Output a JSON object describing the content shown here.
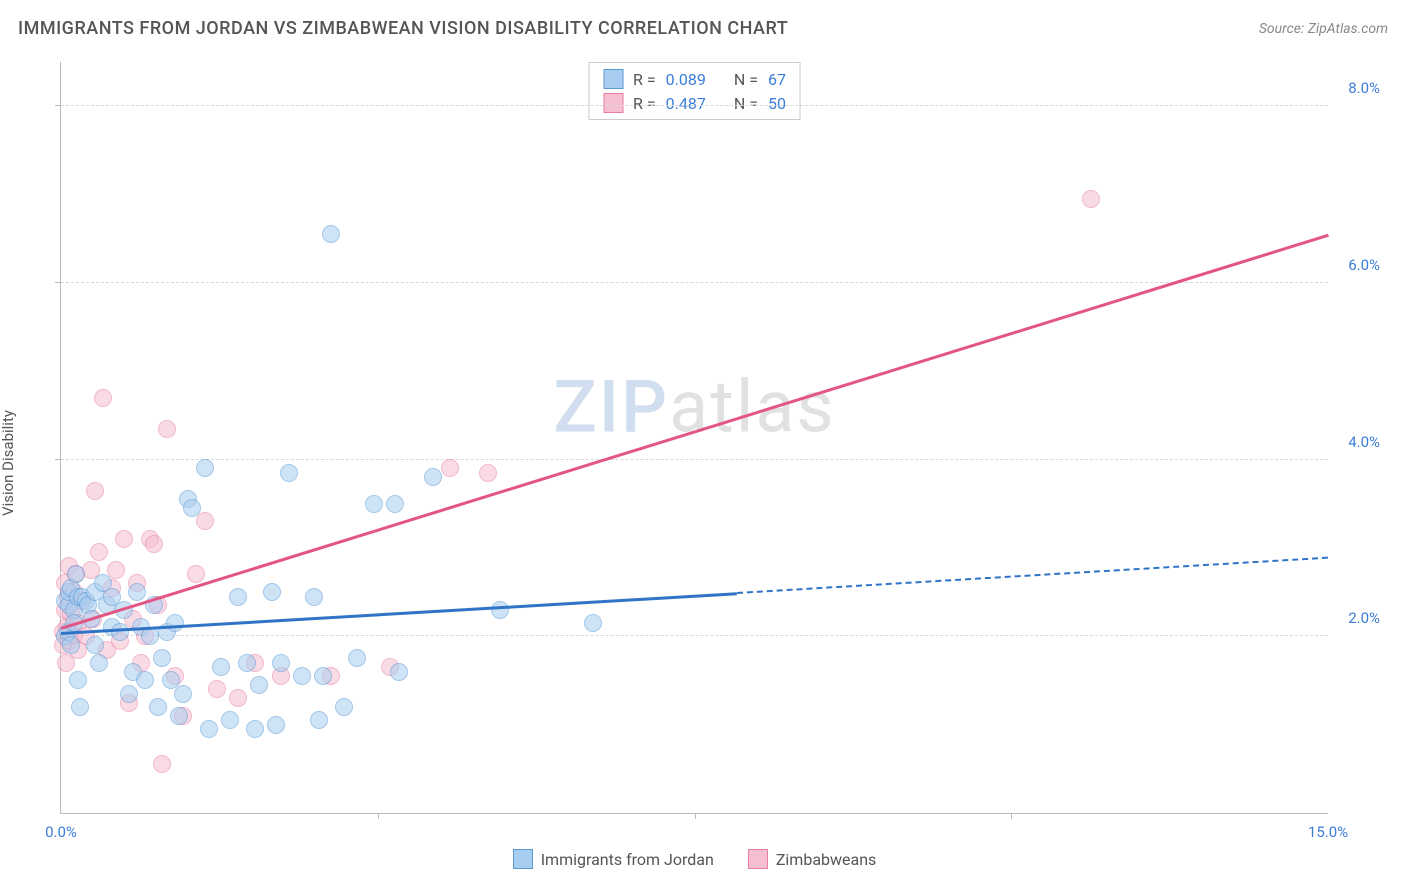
{
  "title": "IMMIGRANTS FROM JORDAN VS ZIMBABWEAN VISION DISABILITY CORRELATION CHART",
  "source": "Source: ZipAtlas.com",
  "ylabel": "Vision Disability",
  "watermark": {
    "z": "ZIP",
    "rest": "atlas"
  },
  "chart": {
    "type": "scatter",
    "xlim": [
      0,
      15
    ],
    "ylim": [
      0,
      8.5
    ],
    "xtick_positions": [
      0,
      15
    ],
    "xtick_labels": [
      "0.0%",
      "15.0%"
    ],
    "xaxis_minor_ticks": [
      3.75,
      7.5,
      11.25
    ],
    "ytick_positions": [
      2,
      4,
      6,
      8
    ],
    "ytick_labels": [
      "2.0%",
      "4.0%",
      "6.0%",
      "8.0%"
    ],
    "grid_y": [
      2,
      4,
      6,
      8
    ],
    "background_color": "#ffffff",
    "grid_color": "#d8d8d8",
    "axis_color": "#bbbbbb",
    "tick_label_color": "#3b7dd8",
    "marker_size": 18,
    "marker_opacity": 0.55,
    "series": [
      {
        "key": "jordan",
        "label": "Immigrants from Jordan",
        "color_fill": "#a9cdf0",
        "color_stroke": "#5b9bd5",
        "R": "0.089",
        "N": "67",
        "trend": {
          "x1": 0,
          "y1": 2.05,
          "x2": 8.0,
          "y2": 2.5,
          "solid_color": "#2f74c7",
          "dash_to_x": 15,
          "dash_to_y": 2.9
        },
        "points": [
          [
            0.05,
            2.4
          ],
          [
            0.05,
            2.0
          ],
          [
            0.08,
            2.05
          ],
          [
            0.1,
            2.35
          ],
          [
            0.1,
            2.5
          ],
          [
            0.12,
            1.9
          ],
          [
            0.12,
            2.55
          ],
          [
            0.15,
            2.3
          ],
          [
            0.15,
            2.15
          ],
          [
            0.18,
            2.7
          ],
          [
            0.2,
            2.45
          ],
          [
            0.2,
            1.5
          ],
          [
            0.22,
            1.2
          ],
          [
            0.25,
            2.45
          ],
          [
            0.3,
            2.4
          ],
          [
            0.32,
            2.35
          ],
          [
            0.35,
            2.2
          ],
          [
            0.4,
            1.9
          ],
          [
            0.4,
            2.5
          ],
          [
            0.45,
            1.7
          ],
          [
            0.5,
            2.6
          ],
          [
            0.55,
            2.35
          ],
          [
            0.6,
            2.1
          ],
          [
            0.6,
            2.45
          ],
          [
            0.7,
            2.05
          ],
          [
            0.75,
            2.3
          ],
          [
            0.8,
            1.35
          ],
          [
            0.85,
            1.6
          ],
          [
            0.9,
            2.5
          ],
          [
            0.95,
            2.1
          ],
          [
            1.0,
            1.5
          ],
          [
            1.05,
            2.0
          ],
          [
            1.1,
            2.35
          ],
          [
            1.15,
            1.2
          ],
          [
            1.2,
            1.75
          ],
          [
            1.25,
            2.05
          ],
          [
            1.3,
            1.5
          ],
          [
            1.35,
            2.15
          ],
          [
            1.4,
            1.1
          ],
          [
            1.45,
            1.35
          ],
          [
            1.5,
            3.55
          ],
          [
            1.55,
            3.45
          ],
          [
            1.7,
            3.9
          ],
          [
            1.75,
            0.95
          ],
          [
            1.9,
            1.65
          ],
          [
            2.0,
            1.05
          ],
          [
            2.1,
            2.45
          ],
          [
            2.2,
            1.7
          ],
          [
            2.3,
            0.95
          ],
          [
            2.35,
            1.45
          ],
          [
            2.5,
            2.5
          ],
          [
            2.55,
            1.0
          ],
          [
            2.6,
            1.7
          ],
          [
            2.7,
            3.85
          ],
          [
            2.85,
            1.55
          ],
          [
            3.0,
            2.45
          ],
          [
            3.05,
            1.05
          ],
          [
            3.1,
            1.55
          ],
          [
            3.2,
            6.55
          ],
          [
            3.35,
            1.2
          ],
          [
            3.5,
            1.75
          ],
          [
            3.7,
            3.5
          ],
          [
            3.95,
            3.5
          ],
          [
            4.0,
            1.6
          ],
          [
            4.4,
            3.8
          ],
          [
            5.2,
            2.3
          ],
          [
            6.3,
            2.15
          ]
        ]
      },
      {
        "key": "zimbabwe",
        "label": "Zimbabweans",
        "color_fill": "#f5bfd0",
        "color_stroke": "#e87fa3",
        "R": "0.487",
        "N": "50",
        "trend": {
          "x1": 0,
          "y1": 2.1,
          "x2": 15,
          "y2": 6.55,
          "solid_color": "#e25584"
        },
        "points": [
          [
            0.02,
            1.9
          ],
          [
            0.02,
            2.05
          ],
          [
            0.05,
            2.3
          ],
          [
            0.05,
            2.6
          ],
          [
            0.06,
            1.7
          ],
          [
            0.07,
            2.1
          ],
          [
            0.08,
            2.45
          ],
          [
            0.1,
            1.95
          ],
          [
            0.1,
            2.8
          ],
          [
            0.12,
            2.25
          ],
          [
            0.15,
            2.0
          ],
          [
            0.15,
            2.5
          ],
          [
            0.18,
            2.7
          ],
          [
            0.2,
            1.85
          ],
          [
            0.2,
            2.15
          ],
          [
            0.25,
            2.4
          ],
          [
            0.3,
            2.0
          ],
          [
            0.35,
            2.75
          ],
          [
            0.38,
            2.2
          ],
          [
            0.4,
            3.65
          ],
          [
            0.45,
            2.95
          ],
          [
            0.5,
            4.7
          ],
          [
            0.55,
            1.85
          ],
          [
            0.6,
            2.55
          ],
          [
            0.65,
            2.75
          ],
          [
            0.7,
            1.95
          ],
          [
            0.75,
            3.1
          ],
          [
            0.8,
            1.25
          ],
          [
            0.85,
            2.2
          ],
          [
            0.9,
            2.6
          ],
          [
            0.95,
            1.7
          ],
          [
            1.0,
            2.0
          ],
          [
            1.05,
            3.1
          ],
          [
            1.1,
            3.05
          ],
          [
            1.15,
            2.35
          ],
          [
            1.2,
            0.55
          ],
          [
            1.25,
            4.35
          ],
          [
            1.35,
            1.55
          ],
          [
            1.45,
            1.1
          ],
          [
            1.6,
            2.7
          ],
          [
            1.7,
            3.3
          ],
          [
            1.85,
            1.4
          ],
          [
            2.1,
            1.3
          ],
          [
            2.3,
            1.7
          ],
          [
            2.6,
            1.55
          ],
          [
            3.2,
            1.55
          ],
          [
            3.9,
            1.65
          ],
          [
            4.6,
            3.9
          ],
          [
            5.05,
            3.85
          ],
          [
            12.2,
            6.95
          ]
        ]
      }
    ]
  },
  "legend_bottom": [
    {
      "series": "jordan"
    },
    {
      "series": "zimbabwe"
    }
  ]
}
